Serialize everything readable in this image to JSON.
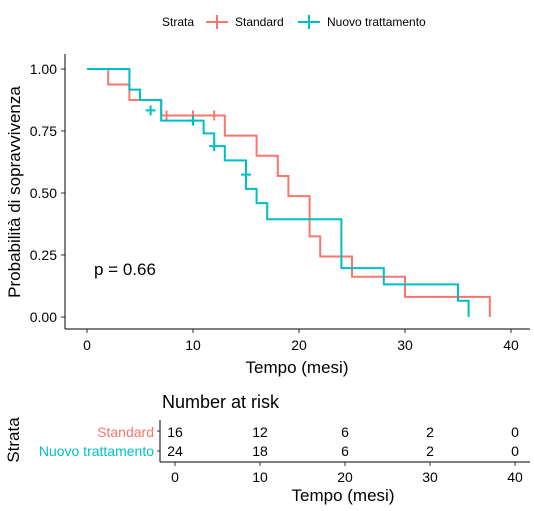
{
  "chart_data": {
    "type": "line",
    "subtype": "kaplan-meier",
    "title": "",
    "xlabel": "Tempo (mesi)",
    "ylabel": "Probabilità di sopravvivenza",
    "xlim": [
      -3,
      41.5
    ],
    "ylim": [
      0,
      1
    ],
    "x_ticks": [
      0,
      10,
      20,
      30,
      40
    ],
    "x_tick_labels": [
      "0",
      "10",
      "20",
      "30",
      "40"
    ],
    "y_ticks": [
      0,
      0.25,
      0.5,
      0.75,
      1
    ],
    "y_tick_labels": [
      "0.00",
      "0.25",
      "0.50",
      "0.75",
      "1.00"
    ],
    "grid": false,
    "legend_title": "Strata",
    "legend_position": "top",
    "annotation": "p = 0.66",
    "series": [
      {
        "name": "Standard",
        "color": "#F8766D",
        "steps": [
          [
            0,
            1.0
          ],
          [
            2,
            0.9375
          ],
          [
            4,
            0.875
          ],
          [
            7,
            0.8125
          ],
          [
            13,
            0.7313
          ],
          [
            16,
            0.65
          ],
          [
            18,
            0.5688
          ],
          [
            19,
            0.4875
          ],
          [
            21,
            0.325
          ],
          [
            22,
            0.2438
          ],
          [
            25,
            0.1625
          ],
          [
            30,
            0.0813
          ],
          [
            38,
            0.0
          ]
        ],
        "censored": [
          [
            7.5,
            0.8125
          ],
          [
            10,
            0.8125
          ],
          [
            12,
            0.8125
          ]
        ]
      },
      {
        "name": "Nuovo trattamento",
        "color": "#00BFC4",
        "steps": [
          [
            0,
            1.0
          ],
          [
            4,
            0.9167
          ],
          [
            5,
            0.875
          ],
          [
            7,
            0.7917
          ],
          [
            11,
            0.7403
          ],
          [
            12,
            0.6889
          ],
          [
            13,
            0.6315
          ],
          [
            15,
            0.5167
          ],
          [
            16,
            0.4593
          ],
          [
            17,
            0.3944
          ],
          [
            22,
            0.3944
          ],
          [
            24,
            0.1972
          ],
          [
            28,
            0.1315
          ],
          [
            35,
            0.0657
          ],
          [
            36,
            0.0
          ]
        ],
        "censored": [
          [
            6,
            0.8333
          ],
          [
            10,
            0.7917
          ],
          [
            12,
            0.6889
          ],
          [
            15,
            0.5741
          ]
        ]
      }
    ]
  },
  "risk_table": {
    "title": "Number at risk",
    "ylabel": "Strata",
    "xlabel": "Tempo (mesi)",
    "times": [
      "0",
      "10",
      "20",
      "30",
      "40"
    ],
    "rows": [
      {
        "name": "Standard",
        "color": "#F8766D",
        "values": [
          "16",
          "12",
          "6",
          "2",
          "0"
        ]
      },
      {
        "name": "Nuovo trattamento",
        "color": "#00BFC4",
        "values": [
          "24",
          "18",
          "6",
          "2",
          "0"
        ]
      }
    ]
  }
}
